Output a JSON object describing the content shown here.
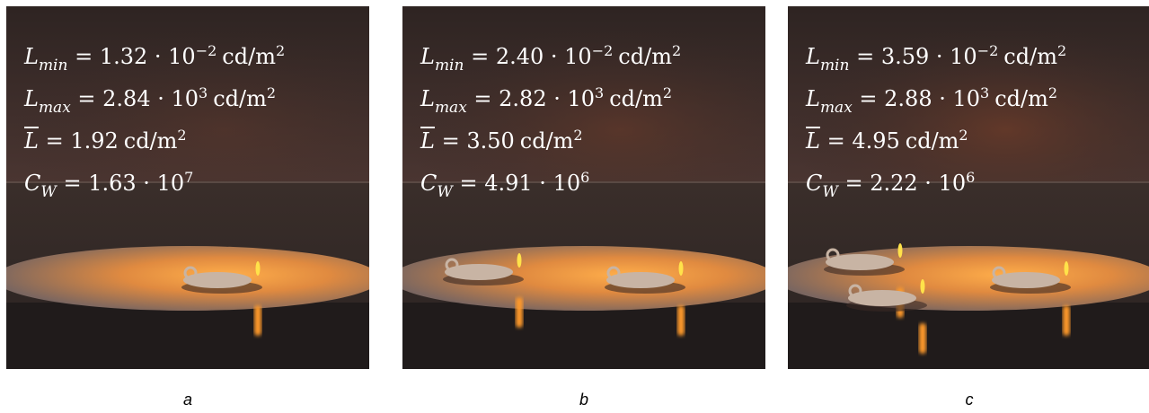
{
  "panels": [
    {
      "label": "a",
      "lines": [
        {
          "symbol": "L",
          "subscript": "min",
          "value": "= 1.32 · 10",
          "exponent": "−2",
          "unit": "cd/m",
          "unit_exponent": "2"
        },
        {
          "symbol": "L",
          "subscript": "max",
          "value": "= 2.84 · 10",
          "exponent": "3",
          "unit": "cd/m",
          "unit_exponent": "2"
        },
        {
          "symbol": "L",
          "value": "= 1.92",
          "unit": "cd/m",
          "unit_exponent": "2"
        },
        {
          "symbol": "C",
          "subscript": "W",
          "value": "= 1.63 · 10",
          "exponent": "7"
        }
      ]
    },
    {
      "label": "b",
      "lines": [
        {
          "symbol": "L",
          "subscript": "min",
          "value": "= 2.40 · 10",
          "exponent": "−2",
          "unit": "cd/m",
          "unit_exponent": "2"
        },
        {
          "symbol": "L",
          "subscript": "max",
          "value": "= 2.82 · 10",
          "exponent": "3",
          "unit": "cd/m",
          "unit_exponent": "2"
        },
        {
          "symbol": "L",
          "value": "= 3.50",
          "unit": "cd/m",
          "unit_exponent": "2"
        },
        {
          "symbol": "C",
          "subscript": "W",
          "value": "= 4.91 · 10",
          "exponent": "6"
        }
      ]
    },
    {
      "label": "c",
      "lines": [
        {
          "symbol": "L",
          "subscript": "min",
          "value": "= 3.59 · 10",
          "exponent": "−2",
          "unit": "cd/m",
          "unit_exponent": "2"
        },
        {
          "symbol": "L",
          "subscript": "max",
          "value": "= 2.88 · 10",
          "exponent": "3",
          "unit": "cd/m",
          "unit_exponent": "2"
        },
        {
          "symbol": "L",
          "value": "= 4.95",
          "unit": "cd/m",
          "unit_exponent": "2"
        },
        {
          "symbol": "C",
          "subscript": "W",
          "value": "= 2.22 · 10",
          "exponent": "6"
        }
      ]
    }
  ]
}
